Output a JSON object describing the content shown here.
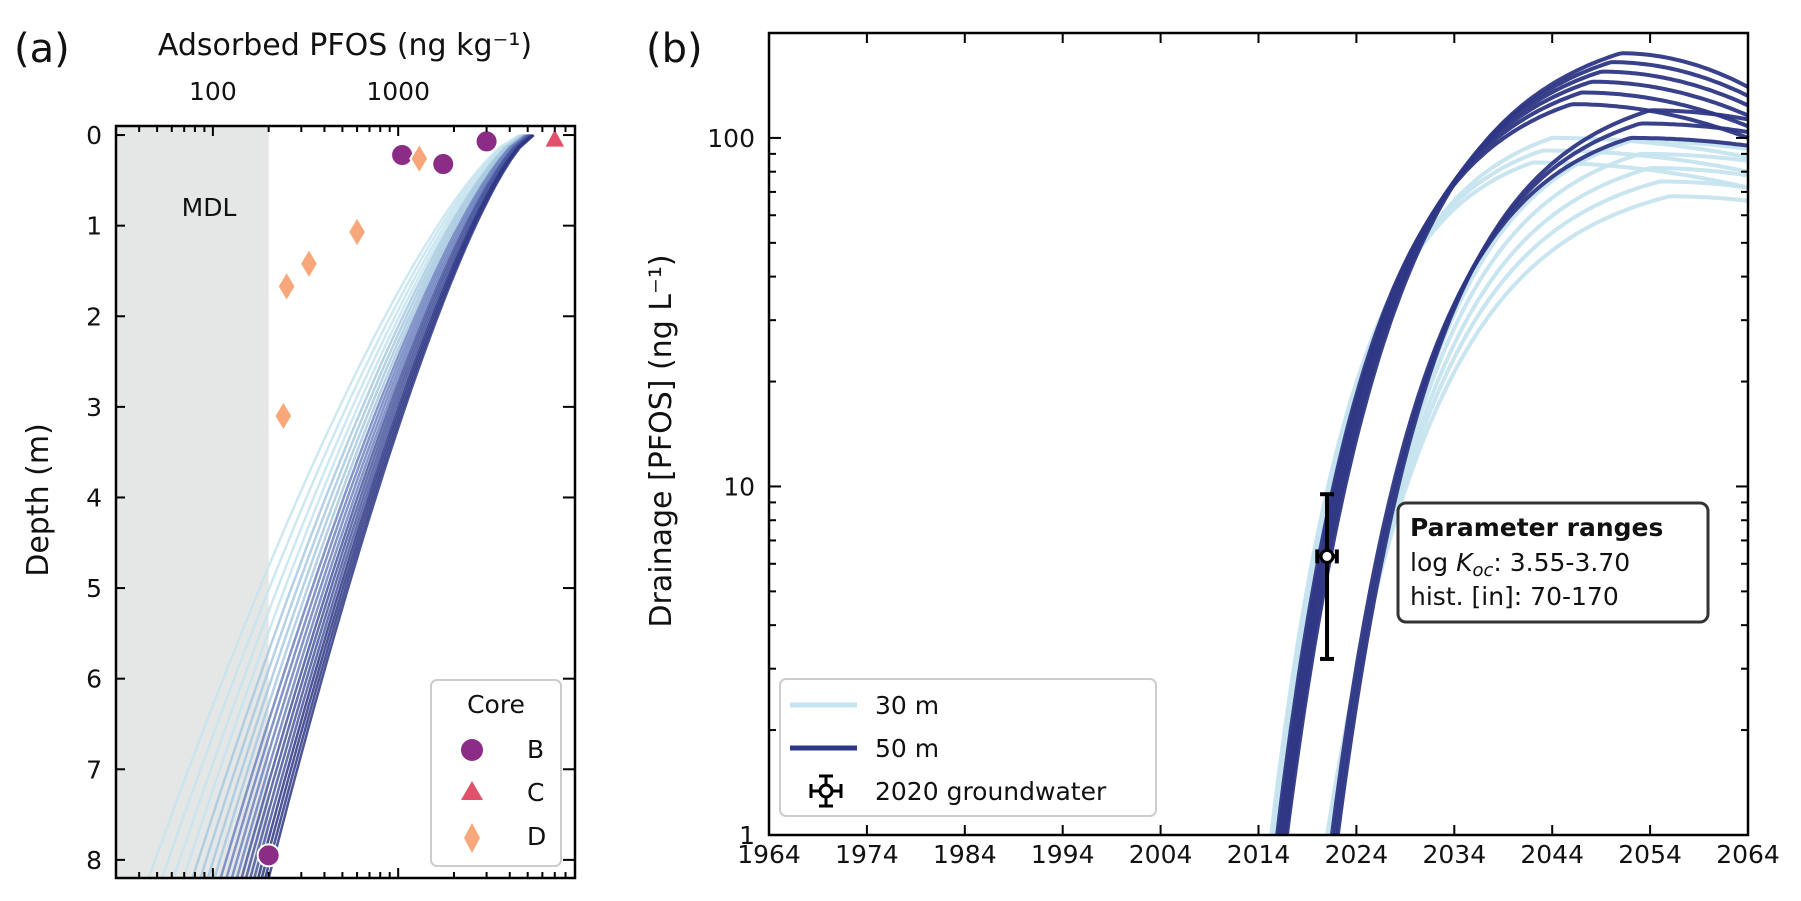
{
  "chart_data": [
    {
      "type": "scatter",
      "panel_label": "(a)",
      "xlabel_top": "Adsorbed PFOS (ng kg⁻¹)",
      "ylabel": "Depth (m)",
      "x_scale": "log",
      "xlim": [
        30,
        9000
      ],
      "ylim": [
        8.2,
        -0.1
      ],
      "x_ticks": [
        "100",
        "1000"
      ],
      "y_ticks": [
        "0",
        "1",
        "2",
        "3",
        "4",
        "5",
        "6",
        "7",
        "8"
      ],
      "mdl": {
        "label": "MDL",
        "x": 200,
        "color": "#e5e7e6"
      },
      "model_curve_colors": [
        "#c5e4ef",
        "#a8c9df",
        "#6f84bf",
        "#4a589f",
        "#2e3785"
      ],
      "model_profiles": {
        "count": 20,
        "depth_max": 8.2,
        "shallow_x_range": [
          4500,
          5400
        ],
        "deep_x_range": [
          45,
          200
        ]
      },
      "legend": {
        "title": "Core",
        "entries": [
          {
            "label": "B",
            "marker": "circle",
            "color": "#8b2c86"
          },
          {
            "label": "C",
            "marker": "triangle",
            "color": "#e2516b"
          },
          {
            "label": "D",
            "marker": "diamond",
            "color": "#f8a77a"
          }
        ],
        "location": "lower right"
      },
      "series": [
        {
          "name": "B",
          "marker": "circle",
          "color": "#8b2c86",
          "points": [
            {
              "x": 1050,
              "y": 0.22
            },
            {
              "x": 1750,
              "y": 0.32
            },
            {
              "x": 3000,
              "y": 0.07
            },
            {
              "x": 200,
              "y": 7.95
            }
          ]
        },
        {
          "name": "C",
          "marker": "triangle",
          "color": "#e2516b",
          "points": [
            {
              "x": 7000,
              "y": 0.04
            }
          ]
        },
        {
          "name": "D",
          "marker": "diamond",
          "color": "#f8a77a",
          "points": [
            {
              "x": 1300,
              "y": 0.26
            },
            {
              "x": 600,
              "y": 1.07
            },
            {
              "x": 330,
              "y": 1.42
            },
            {
              "x": 250,
              "y": 1.67
            },
            {
              "x": 240,
              "y": 3.1
            }
          ]
        }
      ]
    },
    {
      "type": "line",
      "panel_label": "(b)",
      "ylabel": "Drainage [PFOS] (ng L⁻¹)",
      "y_scale": "log",
      "xlim": [
        1964,
        2064
      ],
      "ylim": [
        1,
        200
      ],
      "x_ticks": [
        "1964",
        "1974",
        "1984",
        "1994",
        "2004",
        "2014",
        "2024",
        "2034",
        "2044",
        "2054",
        "2064"
      ],
      "y_ticks": [
        "1",
        "10",
        "100"
      ],
      "series_styles": [
        {
          "name": "30 m",
          "color": "#c5e4ef"
        },
        {
          "name": "50 m",
          "color": "#2e3785"
        }
      ],
      "series_groups": [
        {
          "name": "30 m",
          "cross_1_year": 2015.5,
          "rise_span_years": 10,
          "curves": [
            {
              "x_cross": 2015.5,
              "peak": 85,
              "peak_year": 2042,
              "end": 72
            },
            {
              "x_cross": 2015.3,
              "peak": 92,
              "peak_year": 2043,
              "end": 80
            },
            {
              "x_cross": 2015.8,
              "peak": 100,
              "peak_year": 2044,
              "end": 88
            },
            {
              "x_cross": 2021.0,
              "peak": 68,
              "peak_year": 2056,
              "end": 66
            },
            {
              "x_cross": 2021.3,
              "peak": 75,
              "peak_year": 2055,
              "end": 72
            },
            {
              "x_cross": 2021.6,
              "peak": 82,
              "peak_year": 2054,
              "end": 78
            },
            {
              "x_cross": 2021.8,
              "peak": 90,
              "peak_year": 2053,
              "end": 86
            },
            {
              "x_cross": 2022.1,
              "peak": 98,
              "peak_year": 2052,
              "end": 93
            }
          ]
        },
        {
          "name": "50 m",
          "cross_1_year": 2016,
          "rise_span_years": 10,
          "curves": [
            {
              "x_cross": 2015.9,
              "peak": 125,
              "peak_year": 2046,
              "end": 100
            },
            {
              "x_cross": 2016.1,
              "peak": 135,
              "peak_year": 2047,
              "end": 108
            },
            {
              "x_cross": 2016.3,
              "peak": 145,
              "peak_year": 2048,
              "end": 116
            },
            {
              "x_cross": 2016.5,
              "peak": 155,
              "peak_year": 2049,
              "end": 124
            },
            {
              "x_cross": 2016.7,
              "peak": 165,
              "peak_year": 2050,
              "end": 132
            },
            {
              "x_cross": 2016.9,
              "peak": 175,
              "peak_year": 2051,
              "end": 140
            },
            {
              "x_cross": 2021.5,
              "peak": 100,
              "peak_year": 2052,
              "end": 95
            },
            {
              "x_cross": 2021.8,
              "peak": 110,
              "peak_year": 2053,
              "end": 104
            },
            {
              "x_cross": 2022.1,
              "peak": 120,
              "peak_year": 2054,
              "end": 113
            }
          ]
        }
      ],
      "observation": {
        "label": "2020 groundwater",
        "x": 2021,
        "y": 6.3,
        "y_low": 3.2,
        "y_high": 9.5,
        "x_err": 1
      },
      "annotation": {
        "title": "Parameter ranges",
        "line1_prefix": "log ",
        "line1_var": "K",
        "line1_sub": "oc",
        "line1_value": ": 3.55-3.70",
        "line2": "hist. [in]: 70-170"
      },
      "legend": {
        "location": "lower left",
        "entries": [
          {
            "label": "30 m",
            "kind": "line",
            "color": "#c5e4ef"
          },
          {
            "label": "50 m",
            "kind": "line",
            "color": "#2e3785"
          },
          {
            "label": "2020 groundwater",
            "kind": "errorbar",
            "color": "#000000"
          }
        ]
      }
    }
  ]
}
